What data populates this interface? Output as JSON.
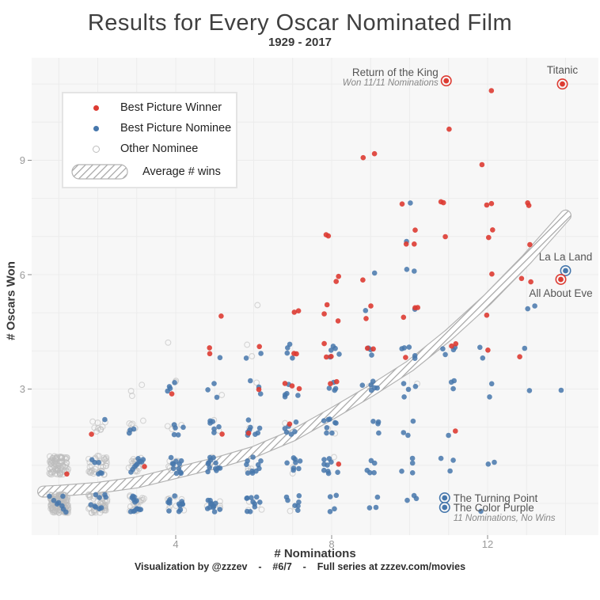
{
  "header": {
    "title": "Results for Every Oscar Nominated Film",
    "subtitle": "1929 - 2017"
  },
  "footer": {
    "text": "Visualization by @zzzev    -    #6/7    -    Full series at zzzev.com/movies"
  },
  "legend": {
    "items": [
      {
        "id": "winner",
        "label": "Best Picture Winner",
        "swatch": "dot",
        "color": "#dd3b32"
      },
      {
        "id": "nominee",
        "label": "Best Picture Nominee",
        "swatch": "dot",
        "color": "#4677ac"
      },
      {
        "id": "other",
        "label": "Other Nominee",
        "swatch": "ring",
        "color": "#bdbdbd"
      }
    ],
    "band_label": "Average # wins"
  },
  "chart_data": {
    "type": "scatter",
    "title": "Results for Every Oscar Nominated Film",
    "subtitle": "1929 - 2017",
    "xlabel": "# Nominations",
    "ylabel": "# Oscars Won",
    "x_ticks": [
      4,
      8,
      12
    ],
    "y_ticks": [
      3,
      6,
      9
    ],
    "xlim": [
      0.3,
      14.9
    ],
    "ylim": [
      -0.9,
      11.7
    ],
    "grid": true,
    "legend_position": "top-left",
    "colors": {
      "winner": "#dd3b32",
      "nominee": "#4677ac",
      "other": "#bdbdbd",
      "band_edge": "#b3b3b3",
      "band_hatch": "#a3a3a3",
      "panel_bg": "#f7f7f7",
      "grid_line": "#ececec"
    },
    "clusters_columns": [
      "nominations",
      "wins",
      "winners",
      "nominees",
      "others"
    ],
    "clusters": [
      [
        1,
        0,
        0,
        8,
        130
      ],
      [
        1,
        1,
        1,
        0,
        85
      ],
      [
        2,
        0,
        0,
        9,
        55
      ],
      [
        2,
        1,
        0,
        6,
        35
      ],
      [
        2,
        2,
        1,
        1,
        9
      ],
      [
        3,
        0,
        0,
        13,
        22
      ],
      [
        3,
        1,
        1,
        9,
        16
      ],
      [
        3,
        2,
        0,
        3,
        6
      ],
      [
        3,
        3,
        0,
        0,
        3
      ],
      [
        4,
        0,
        0,
        13,
        8
      ],
      [
        4,
        1,
        0,
        11,
        7
      ],
      [
        4,
        2,
        0,
        5,
        4
      ],
      [
        4,
        3,
        1,
        4,
        2
      ],
      [
        4,
        4,
        0,
        0,
        1
      ],
      [
        5,
        0,
        0,
        11,
        5
      ],
      [
        5,
        1,
        0,
        12,
        4
      ],
      [
        5,
        2,
        1,
        6,
        2
      ],
      [
        5,
        3,
        0,
        3,
        1
      ],
      [
        5,
        4,
        2,
        1,
        0
      ],
      [
        5,
        5,
        1,
        0,
        0
      ],
      [
        6,
        0,
        0,
        10,
        4
      ],
      [
        6,
        1,
        0,
        10,
        4
      ],
      [
        6,
        2,
        1,
        8,
        1
      ],
      [
        6,
        3,
        1,
        3,
        1
      ],
      [
        6,
        4,
        1,
        2,
        2
      ],
      [
        6,
        5,
        0,
        0,
        1
      ],
      [
        7,
        0,
        0,
        7,
        2
      ],
      [
        7,
        1,
        0,
        8,
        2
      ],
      [
        7,
        2,
        1,
        6,
        1
      ],
      [
        7,
        3,
        3,
        5,
        0
      ],
      [
        7,
        4,
        2,
        4,
        0
      ],
      [
        7,
        5,
        2,
        0,
        0
      ],
      [
        8,
        0,
        0,
        4,
        0
      ],
      [
        8,
        1,
        1,
        9,
        1
      ],
      [
        8,
        2,
        0,
        8,
        2
      ],
      [
        8,
        3,
        2,
        4,
        0
      ],
      [
        8,
        4,
        3,
        5,
        0
      ],
      [
        8,
        5,
        3,
        0,
        0
      ],
      [
        8,
        6,
        2,
        0,
        0
      ],
      [
        8,
        7,
        2,
        0,
        0
      ],
      [
        9,
        0,
        0,
        3,
        0
      ],
      [
        9,
        1,
        0,
        5,
        0
      ],
      [
        9,
        2,
        0,
        4,
        0
      ],
      [
        9,
        3,
        0,
        6,
        1
      ],
      [
        9,
        4,
        2,
        3,
        0
      ],
      [
        9,
        5,
        2,
        1,
        0
      ],
      [
        9,
        6,
        1,
        1,
        0
      ],
      [
        9,
        9,
        2,
        0,
        0
      ],
      [
        10,
        0,
        0,
        3,
        0
      ],
      [
        10,
        1,
        0,
        4,
        0
      ],
      [
        10,
        2,
        0,
        3,
        0
      ],
      [
        10,
        3,
        0,
        4,
        1
      ],
      [
        10,
        4,
        1,
        5,
        0
      ],
      [
        10,
        5,
        3,
        1,
        0
      ],
      [
        10,
        6,
        0,
        2,
        0
      ],
      [
        10,
        7,
        3,
        1,
        0
      ],
      [
        10,
        8,
        1,
        1,
        0
      ],
      [
        11,
        1,
        0,
        3,
        0
      ],
      [
        11,
        2,
        1,
        1,
        0
      ],
      [
        11,
        3,
        0,
        3,
        0
      ],
      [
        11,
        4,
        2,
        4,
        0
      ],
      [
        11,
        7,
        1,
        0,
        0
      ],
      [
        11,
        8,
        2,
        0,
        0
      ],
      [
        11,
        10,
        1,
        0,
        0
      ],
      [
        12,
        0,
        0,
        1,
        0
      ],
      [
        12,
        1,
        0,
        2,
        0
      ],
      [
        12,
        3,
        0,
        2,
        0
      ],
      [
        12,
        4,
        1,
        2,
        0
      ],
      [
        12,
        5,
        1,
        0,
        0
      ],
      [
        12,
        6,
        1,
        0,
        0
      ],
      [
        12,
        7,
        2,
        0,
        0
      ],
      [
        12,
        8,
        2,
        0,
        0
      ],
      [
        12,
        9,
        1,
        0,
        0
      ],
      [
        12,
        11,
        1,
        0,
        0
      ],
      [
        13,
        3,
        0,
        1,
        0
      ],
      [
        13,
        4,
        1,
        1,
        0
      ],
      [
        13,
        5,
        0,
        2,
        0
      ],
      [
        13,
        6,
        2,
        0,
        0
      ],
      [
        13,
        7,
        1,
        0,
        0
      ],
      [
        13,
        8,
        2,
        0,
        0
      ],
      [
        14,
        3,
        0,
        1,
        0
      ]
    ],
    "average_band": {
      "label": "Average # wins",
      "points": [
        [
          0.6,
          0.31
        ],
        [
          1,
          0.33
        ],
        [
          2,
          0.41
        ],
        [
          3,
          0.55
        ],
        [
          4,
          0.8
        ],
        [
          5,
          1.05
        ],
        [
          6,
          1.35
        ],
        [
          7,
          1.78
        ],
        [
          8,
          2.35
        ],
        [
          9,
          2.95
        ],
        [
          10,
          3.6
        ],
        [
          11,
          4.42
        ],
        [
          12,
          5.35
        ],
        [
          13,
          6.4
        ],
        [
          14,
          7.55
        ]
      ]
    },
    "annotations": [
      {
        "film": "Return of the King",
        "note": "Won 11/11 Nominations",
        "nominations": 11,
        "wins": 11,
        "category": "winner",
        "label_position": "left",
        "dot_offset": [
          -3,
          -4
        ]
      },
      {
        "film": "Titanic",
        "note": "",
        "nominations": 14,
        "wins": 11,
        "category": "winner",
        "label_position": "above",
        "dot_offset": [
          -4,
          0
        ]
      },
      {
        "film": "La La Land",
        "note": "",
        "nominations": 14,
        "wins": 6,
        "category": "nominee",
        "label_position": "above",
        "dot_offset": [
          0,
          -5
        ]
      },
      {
        "film": "All About Eve",
        "note": "",
        "nominations": 14,
        "wins": 6,
        "category": "winner",
        "label_position": "below",
        "dot_offset": [
          -6,
          6
        ]
      },
      {
        "film": "The Turning Point",
        "note": "",
        "nominations": 11,
        "wins": 0,
        "category": "nominee",
        "label_position": "right",
        "dot_offset": [
          -5,
          -7
        ]
      },
      {
        "film": "The Color Purple",
        "note": "11 Nominations, No Wins",
        "nominations": 11,
        "wins": 0,
        "category": "nominee",
        "label_position": "right",
        "dot_offset": [
          -5,
          5
        ]
      }
    ]
  }
}
